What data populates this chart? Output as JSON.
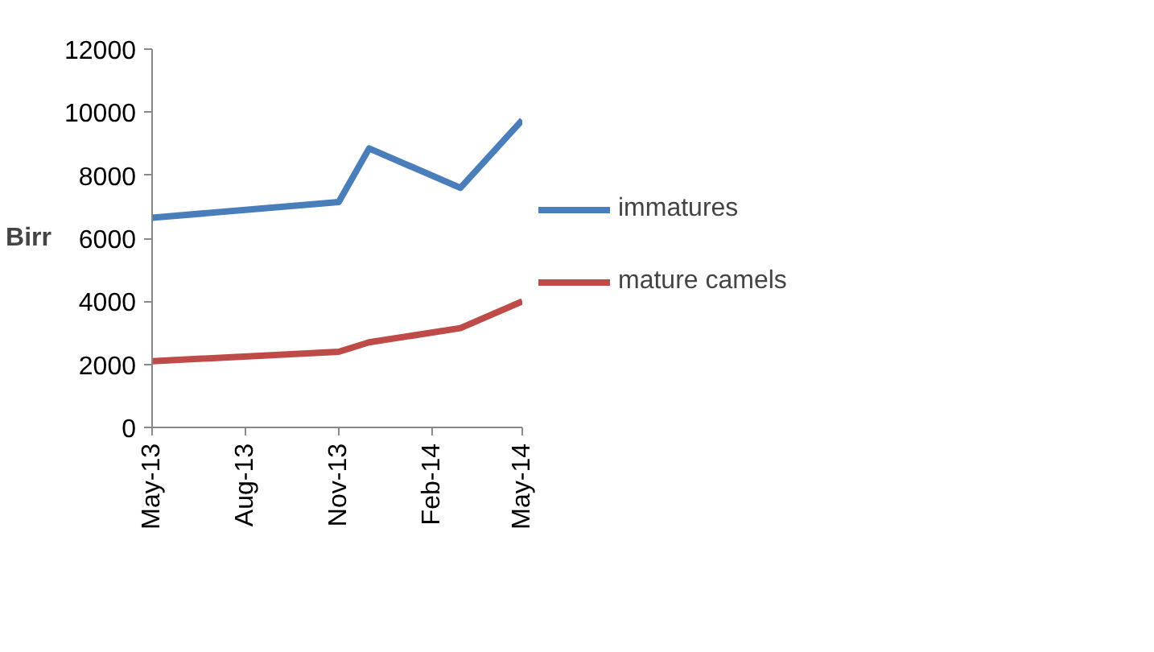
{
  "chart_data": {
    "type": "line",
    "ylabel": "Birr",
    "x": [
      "2013-05",
      "2013-11",
      "2013-12",
      "2014-03",
      "2014-05"
    ],
    "series": [
      {
        "name": "immatures",
        "color": "#4a7ebb",
        "values": [
          6650,
          7150,
          8850,
          7600,
          9750
        ]
      },
      {
        "name": "mature camels",
        "color": "#be4b48",
        "values": [
          2100,
          2400,
          2700,
          3150,
          4000
        ]
      }
    ],
    "xlim": [
      "2013-05",
      "2014-05"
    ],
    "xticks": [
      {
        "value": "2013-05",
        "label": "May-13"
      },
      {
        "value": "2013-08",
        "label": "Aug-13"
      },
      {
        "value": "2013-11",
        "label": "Nov-13"
      },
      {
        "value": "2014-02",
        "label": "Feb-14"
      },
      {
        "value": "2014-05",
        "label": "May-14"
      }
    ],
    "ylim": [
      0,
      12000
    ],
    "yticks": [
      0,
      2000,
      4000,
      6000,
      8000,
      10000,
      12000
    ],
    "legend": "right",
    "grid": false,
    "marker": "none",
    "line_style": "solid"
  }
}
